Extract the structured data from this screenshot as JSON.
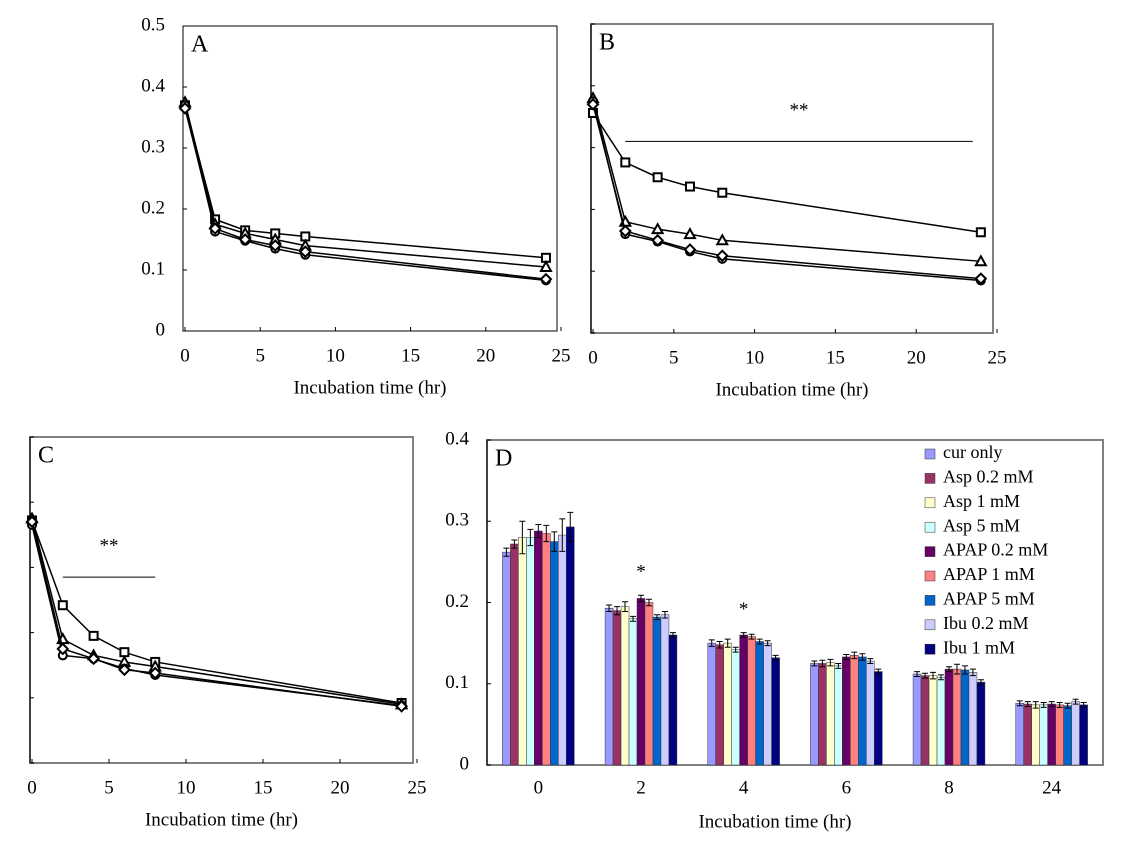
{
  "chart_data": [
    {
      "type": "line",
      "title": "A",
      "x_label": "Incubation time (hr)",
      "x": [
        0,
        2,
        4,
        6,
        8,
        24
      ],
      "xlim": [
        0,
        25
      ],
      "xticks": [
        0,
        5,
        10,
        15,
        20,
        25
      ],
      "ylim": [
        0,
        0.5
      ],
      "yticks": [
        0,
        0.1,
        0.2,
        0.3,
        0.4,
        0.5
      ],
      "ytick_labels": true,
      "box_color": "#000000",
      "series": [
        {
          "marker": "square",
          "color": "#000000",
          "values": [
            0.37,
            0.183,
            0.165,
            0.16,
            0.155,
            0.12
          ]
        },
        {
          "marker": "triangle",
          "color": "#000000",
          "values": [
            0.375,
            0.175,
            0.16,
            0.15,
            0.14,
            0.105
          ]
        },
        {
          "marker": "circle",
          "color": "#000000",
          "values": [
            0.37,
            0.163,
            0.148,
            0.135,
            0.125,
            0.083
          ]
        },
        {
          "marker": "diamond",
          "color": "#000000",
          "values": [
            0.365,
            0.168,
            0.15,
            0.14,
            0.13,
            0.085
          ]
        }
      ]
    },
    {
      "type": "line",
      "title": "B",
      "x_label": "Incubation time (hr)",
      "x": [
        0,
        2,
        4,
        6,
        8,
        24
      ],
      "xlim": [
        0,
        25
      ],
      "xticks": [
        0,
        5,
        10,
        15,
        20,
        25
      ],
      "ylim": [
        0,
        0.5
      ],
      "yticks": [
        0,
        0.1,
        0.2,
        0.3,
        0.4,
        0.5
      ],
      "ytick_labels": false,
      "box_color": "#808080",
      "annotations": [
        "**"
      ],
      "series": [
        {
          "marker": "square",
          "color": "#000000",
          "values": [
            0.356,
            0.276,
            0.252,
            0.237,
            0.227,
            0.163
          ]
        },
        {
          "marker": "triangle",
          "color": "#000000",
          "values": [
            0.38,
            0.18,
            0.168,
            0.16,
            0.15,
            0.116
          ]
        },
        {
          "marker": "circle",
          "color": "#000000",
          "values": [
            0.375,
            0.16,
            0.148,
            0.132,
            0.12,
            0.085
          ]
        },
        {
          "marker": "diamond",
          "color": "#000000",
          "values": [
            0.37,
            0.165,
            0.15,
            0.135,
            0.125,
            0.088
          ]
        }
      ]
    },
    {
      "type": "line",
      "title": "C",
      "x_label": "Incubation time (hr)",
      "x": [
        0,
        2,
        4,
        6,
        8,
        24
      ],
      "xlim": [
        0,
        25
      ],
      "xticks": [
        0,
        5,
        10,
        15,
        20,
        25
      ],
      "ylim": [
        0,
        0.5
      ],
      "yticks": [
        0,
        0.1,
        0.2,
        0.3,
        0.4,
        0.5
      ],
      "ytick_labels": false,
      "box_color": "#808080",
      "annotations": [
        "**"
      ],
      "series": [
        {
          "marker": "square",
          "color": "#000000",
          "values": [
            0.372,
            0.242,
            0.195,
            0.17,
            0.155,
            0.092
          ]
        },
        {
          "marker": "triangle",
          "color": "#000000",
          "values": [
            0.375,
            0.19,
            0.165,
            0.155,
            0.148,
            0.09
          ]
        },
        {
          "marker": "circle",
          "color": "#000000",
          "values": [
            0.365,
            0.165,
            0.16,
            0.145,
            0.135,
            0.088
          ]
        },
        {
          "marker": "diamond",
          "color": "#000000",
          "values": [
            0.37,
            0.175,
            0.16,
            0.143,
            0.138,
            0.087
          ]
        }
      ]
    },
    {
      "type": "bar",
      "title": "D",
      "x_label": "Incubation time (hr)",
      "categories": [
        "0",
        "2",
        "4",
        "6",
        "8",
        "24"
      ],
      "ylim": [
        0,
        0.4
      ],
      "yticks": [
        0,
        0.1,
        0.2,
        0.3,
        0.4
      ],
      "ytick_labels": true,
      "box_color": "#808080",
      "legend": "upper right",
      "annotations": [
        "*",
        "*"
      ],
      "series": [
        {
          "name": "cur only",
          "color": "#9999ff",
          "values": [
            0.262,
            0.193,
            0.15,
            0.125,
            0.112,
            0.076
          ],
          "errors": [
            0.005,
            0.004,
            0.004,
            0.003,
            0.003,
            0.003
          ]
        },
        {
          "name": "Asp 0.2 mM",
          "color": "#993366",
          "values": [
            0.272,
            0.19,
            0.148,
            0.125,
            0.11,
            0.075
          ],
          "errors": [
            0.005,
            0.005,
            0.004,
            0.004,
            0.003,
            0.003
          ]
        },
        {
          "name": "Asp 1 mM",
          "color": "#ffffcc",
          "values": [
            0.28,
            0.195,
            0.15,
            0.126,
            0.11,
            0.074
          ],
          "errors": [
            0.02,
            0.006,
            0.005,
            0.004,
            0.004,
            0.004
          ]
        },
        {
          "name": "Asp 5 mM",
          "color": "#ccffff",
          "values": [
            0.28,
            0.18,
            0.142,
            0.122,
            0.108,
            0.074
          ],
          "errors": [
            0.01,
            0.003,
            0.003,
            0.003,
            0.003,
            0.003
          ]
        },
        {
          "name": "APAP 0.2 mM",
          "color": "#660066",
          "values": [
            0.288,
            0.205,
            0.16,
            0.133,
            0.118,
            0.075
          ],
          "errors": [
            0.008,
            0.004,
            0.003,
            0.003,
            0.003,
            0.003
          ]
        },
        {
          "name": "APAP 1 mM",
          "color": "#ff8080",
          "values": [
            0.285,
            0.2,
            0.158,
            0.135,
            0.118,
            0.074
          ],
          "errors": [
            0.01,
            0.004,
            0.003,
            0.004,
            0.006,
            0.003
          ]
        },
        {
          "name": "APAP 5 mM",
          "color": "#0066cc",
          "values": [
            0.275,
            0.182,
            0.152,
            0.133,
            0.117,
            0.073
          ],
          "errors": [
            0.012,
            0.003,
            0.003,
            0.004,
            0.005,
            0.003
          ]
        },
        {
          "name": "Ibu 0.2 mM",
          "color": "#ccccff",
          "values": [
            0.283,
            0.185,
            0.15,
            0.128,
            0.114,
            0.078
          ],
          "errors": [
            0.02,
            0.004,
            0.003,
            0.003,
            0.004,
            0.003
          ]
        },
        {
          "name": "Ibu 1 mM",
          "color": "#000080",
          "values": [
            0.293,
            0.16,
            0.132,
            0.115,
            0.102,
            0.074
          ],
          "errors": [
            0.018,
            0.003,
            0.003,
            0.003,
            0.003,
            0.003
          ]
        }
      ]
    }
  ]
}
